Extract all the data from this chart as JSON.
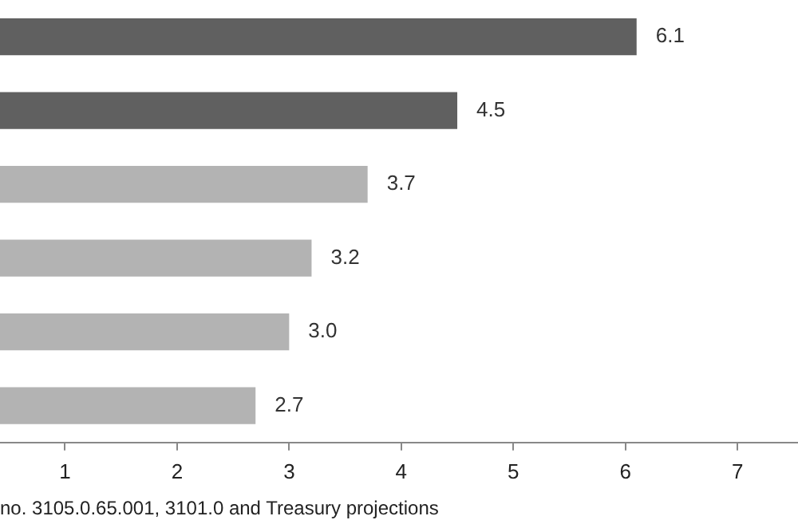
{
  "chart_data": {
    "type": "bar",
    "orientation": "horizontal",
    "categories": [
      null,
      null,
      null,
      null,
      null,
      null
    ],
    "values": [
      6.1,
      4.5,
      3.7,
      3.2,
      3.0,
      2.7
    ],
    "colors": [
      "#606060",
      "#606060",
      "#b3b3b3",
      "#b3b3b3",
      "#b3b3b3",
      "#b3b3b3"
    ],
    "value_labels": [
      "6.1",
      "4.5",
      "3.7",
      "3.2",
      "3.0",
      "2.7"
    ],
    "xlim": [
      0.42,
      7.54
    ],
    "xticks": [
      1,
      2,
      3,
      4,
      5,
      6,
      7
    ],
    "grid": false,
    "legend": false,
    "annotations": [
      "no. 3105.0.65.001, 3101.0 and Treasury projections"
    ]
  }
}
